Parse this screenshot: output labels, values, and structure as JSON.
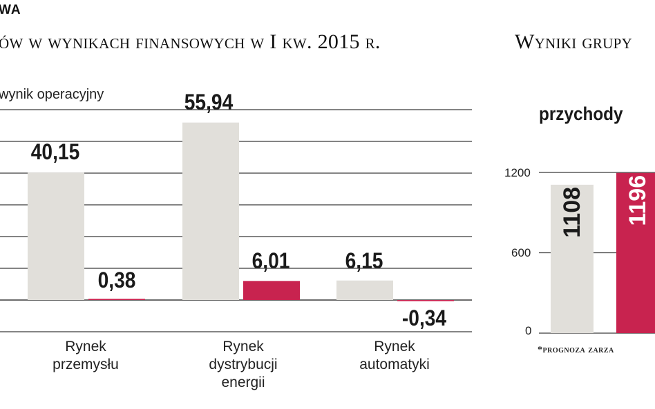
{
  "header": {
    "section_tag": "WA",
    "left_title": "ów w wynikach finansowych w I kw. 2015 r.",
    "right_title": "Wyniki grupy"
  },
  "colors": {
    "gray_bar": "#e1dfda",
    "red_bar": "#c8234f",
    "grid": "#3a3a3a",
    "text": "#1a1a1a"
  },
  "chart_data": [
    {
      "type": "bar",
      "legend": [
        "wynik operacyjny"
      ],
      "categories": [
        [
          "Rynek",
          "przemysłu"
        ],
        [
          "Rynek",
          "dystrybucji",
          "energii"
        ],
        [
          "Rynek",
          "automatyki"
        ]
      ],
      "series": [
        {
          "color": "#e1dfda",
          "values": [
            40.15,
            55.94,
            6.15
          ]
        },
        {
          "color": "#c8234f",
          "values": [
            0.38,
            6.01,
            -0.34
          ]
        }
      ],
      "value_labels": [
        [
          "40,15",
          "55,94",
          "6,15"
        ],
        [
          "0,38",
          "6,01",
          "-0,34"
        ]
      ],
      "ylim": [
        -7,
        60
      ],
      "grid": true
    },
    {
      "type": "bar",
      "title": "przychody",
      "values": [
        1108,
        1196
      ],
      "value_labels": [
        "1108",
        "1196"
      ],
      "colors": [
        "#e1dfda",
        "#c8234f"
      ],
      "yticks": [
        "0",
        "600",
        "1200"
      ],
      "ylim": [
        0,
        1200
      ],
      "grid": true,
      "footnote": "*prognoza zarza"
    }
  ]
}
